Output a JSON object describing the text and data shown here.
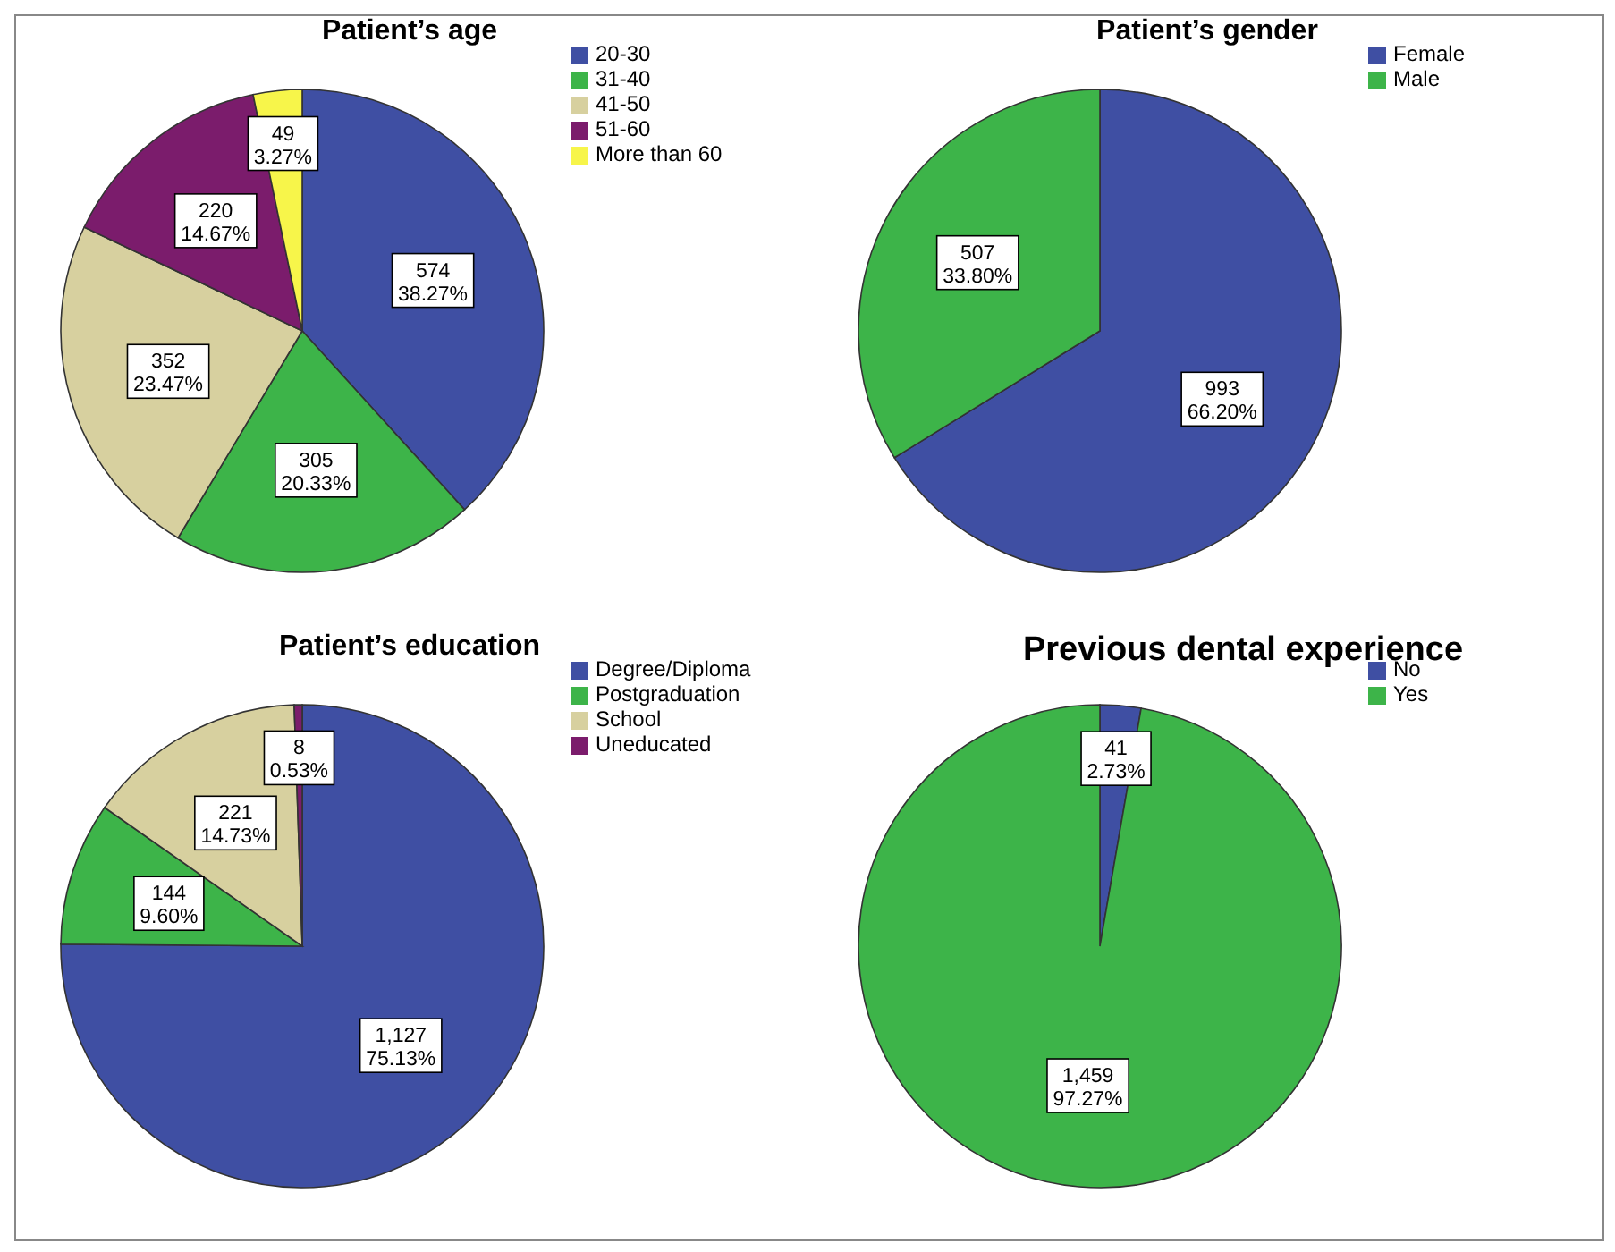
{
  "chart_data": [
    {
      "type": "pie",
      "title": "Patient’s age",
      "categories": [
        "20-30",
        "31-40",
        "41-50",
        "51-60",
        "More than 60"
      ],
      "values": [
        574,
        305,
        352,
        220,
        49
      ],
      "colors": [
        "#3f4fa3",
        "#3db449",
        "#d7d09f",
        "#7b1c6c",
        "#f7f54a"
      ],
      "value_labels": [
        "574\n38.27%",
        "305\n20.33%",
        "352\n23.47%",
        "220\n14.67%",
        "49\n3.27%"
      ],
      "legend": "top right"
    },
    {
      "type": "pie",
      "title": "Patient’s gender",
      "categories": [
        "Female",
        "Male"
      ],
      "values": [
        993,
        507
      ],
      "colors": [
        "#3f4fa3",
        "#3db449"
      ],
      "value_labels": [
        "993\n66.20%",
        "507\n33.80%"
      ],
      "legend": "top right"
    },
    {
      "type": "pie",
      "title": "Patient’s education",
      "categories": [
        "Degree/Diploma",
        "Postgraduation",
        "School",
        "Uneducated"
      ],
      "values": [
        1127,
        144,
        221,
        8
      ],
      "colors": [
        "#3f4fa3",
        "#3db449",
        "#d7d09f",
        "#7b1c6c"
      ],
      "value_labels": [
        "1,127\n75.13%",
        "144\n9.60%",
        "221\n14.73%",
        "8\n0.53%"
      ],
      "legend": "top right"
    },
    {
      "type": "pie",
      "title": "Previous dental experience",
      "categories": [
        "No",
        "Yes"
      ],
      "values": [
        41,
        1459
      ],
      "colors": [
        "#3f4fa3",
        "#3db449"
      ],
      "value_labels": [
        "41\n2.73%",
        "1,459\n97.27%"
      ],
      "legend": "top right"
    }
  ]
}
